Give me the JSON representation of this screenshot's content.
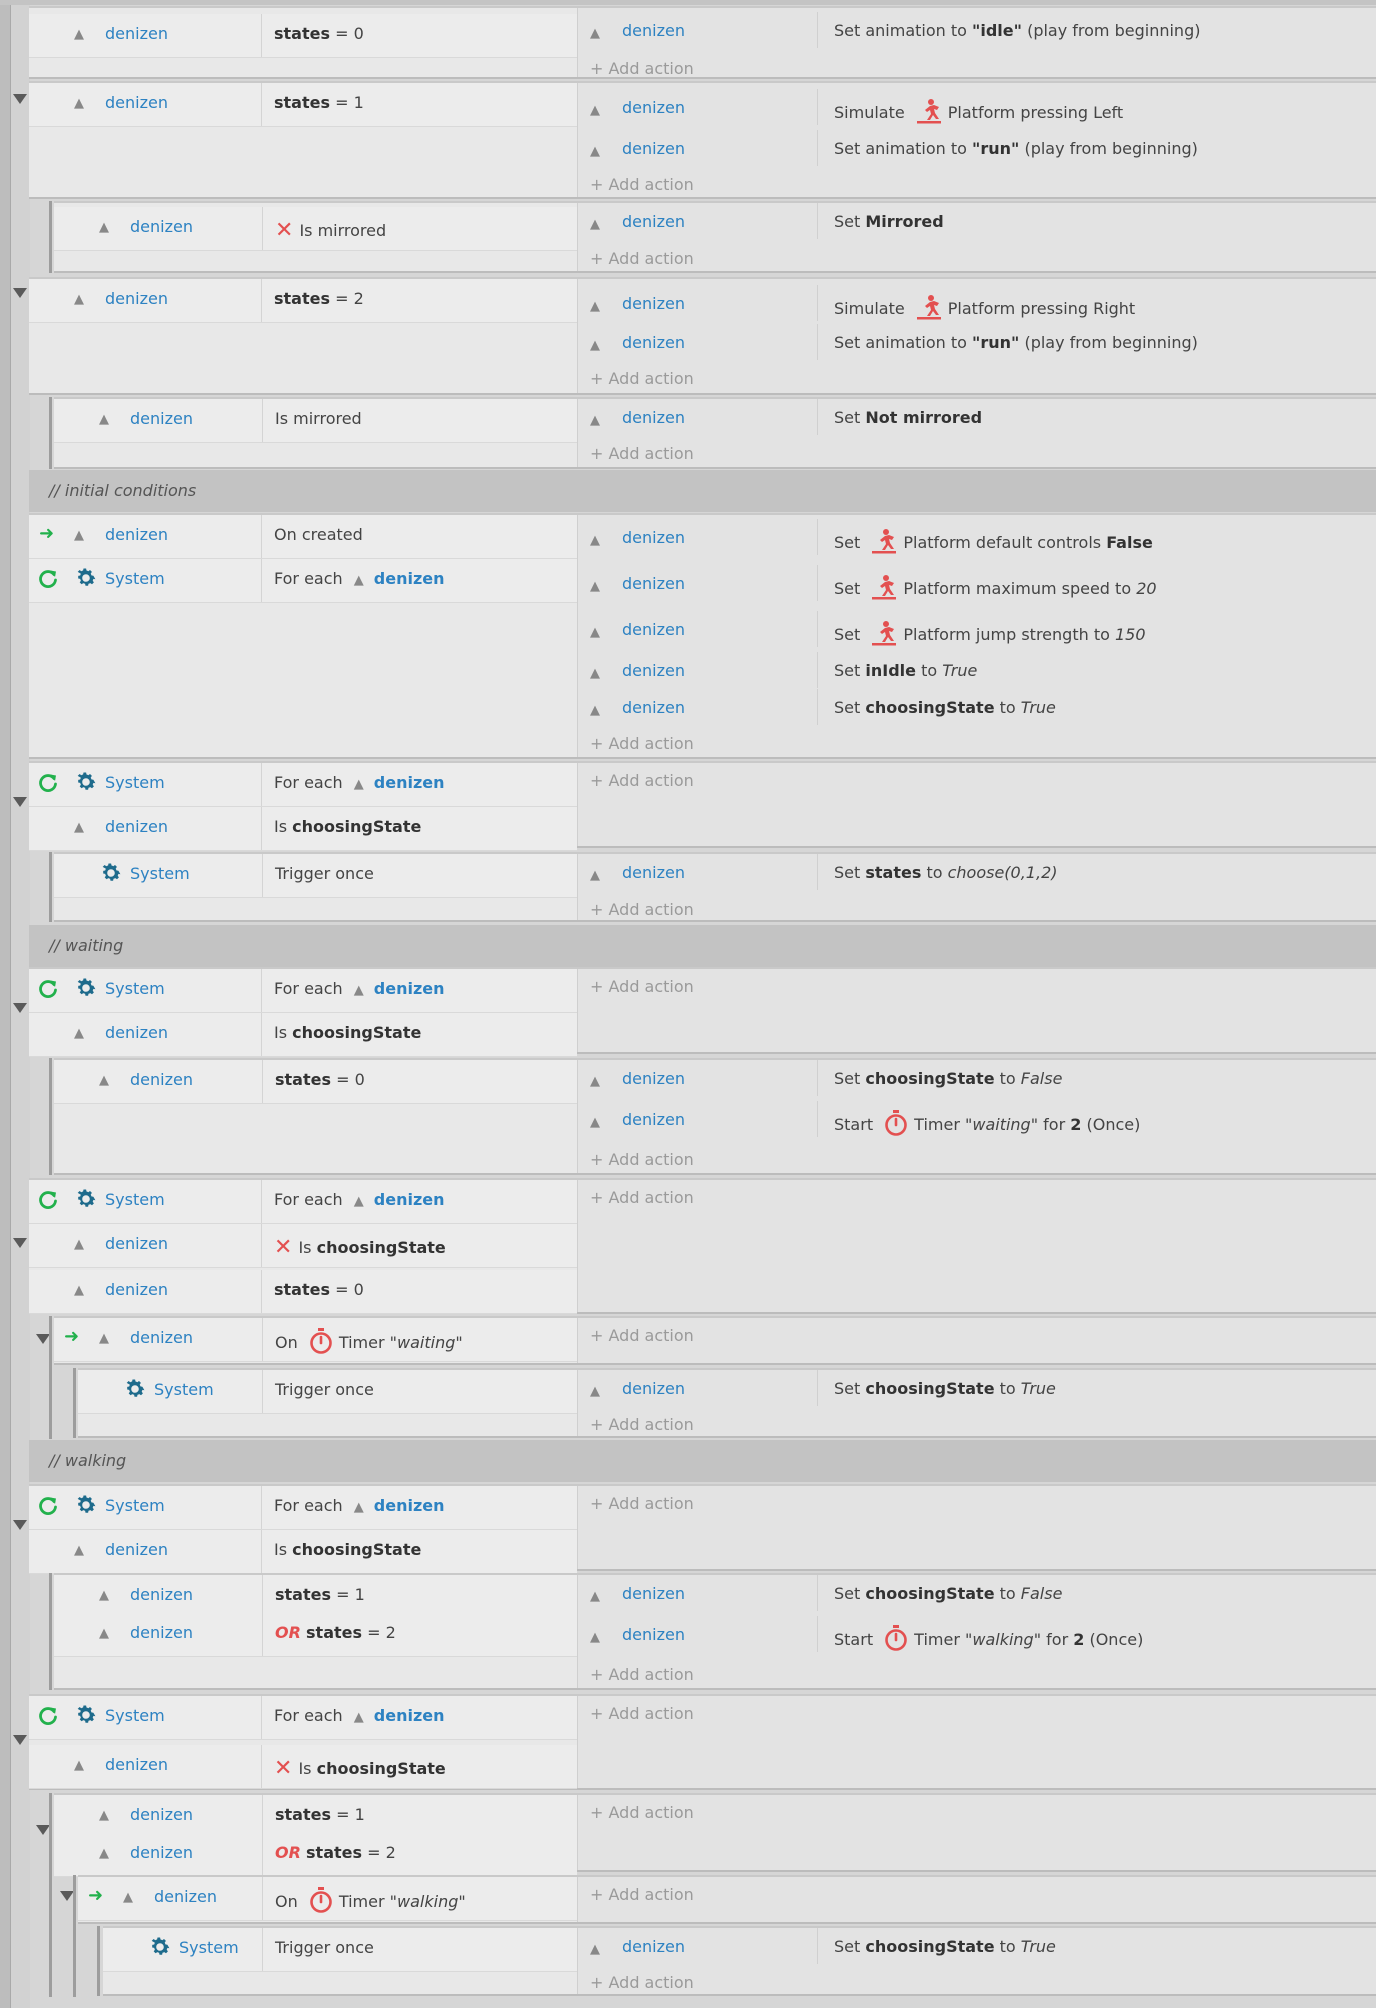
{
  "object": "denizen",
  "system": "System",
  "add_action": "Add action",
  "events": [
    {
      "conditions": [
        {
          "kind": "obj",
          "text_key": "e1c1"
        }
      ],
      "actions": [
        "e1a1"
      ]
    },
    {
      "comment": "initial conditions"
    }
  ],
  "texts": {
    "states_eq_0": "states = 0",
    "states_eq_1": "states = 1",
    "states_eq_2": "states = 2",
    "or_states_eq_2": "OR states = 2",
    "is_mirrored": "Is mirrored",
    "on_created": "On created",
    "for_each": "For each",
    "is_choosing_state": "Is choosingState",
    "trigger_once": "Trigger once",
    "on_timer_waiting": "On Timer \"waiting\"",
    "on_timer_walking": "On Timer \"walking\""
  },
  "comments": {
    "initial": "initial conditions",
    "waiting": "waiting",
    "walking": "walking"
  },
  "actions": {
    "set_anim_idle": "Set animation to \"idle\" (play from beginning)",
    "simulate_left": "Simulate Platform pressing Left",
    "set_anim_run": "Set animation to \"run\" (play from beginning)",
    "set_mirrored": "Set Mirrored",
    "simulate_right": "Simulate Platform pressing Right",
    "set_not_mirrored": "Set Not mirrored",
    "set_default_controls": "Set Platform default controls False",
    "set_max_speed": "Set Platform maximum speed to 20",
    "set_jump": "Set Platform jump strength to 150",
    "set_inidle": "Set inIdle to True",
    "set_choosing_true": "Set choosingState to True",
    "set_states_choose": "Set states to choose(0,1,2)",
    "set_choosing_false": "Set choosingState to False",
    "start_timer_waiting": "Start Timer \"waiting\" for 2 (Once)",
    "start_timer_walking": "Start Timer \"walking\" for 2 (Once)"
  },
  "icons": {
    "pin": "pin-icon",
    "gear": "gear-icon",
    "loop": "loop-icon",
    "trigger": "trigger-arrow-icon",
    "runner": "platform-behavior-icon",
    "timer": "timer-icon",
    "invert": "invert-x-icon"
  },
  "colors": {
    "object_blue": "#2d82c2",
    "accent_red": "#e35050",
    "trigger_green": "#22b14c",
    "comment_bg": "#c3c3c3"
  }
}
